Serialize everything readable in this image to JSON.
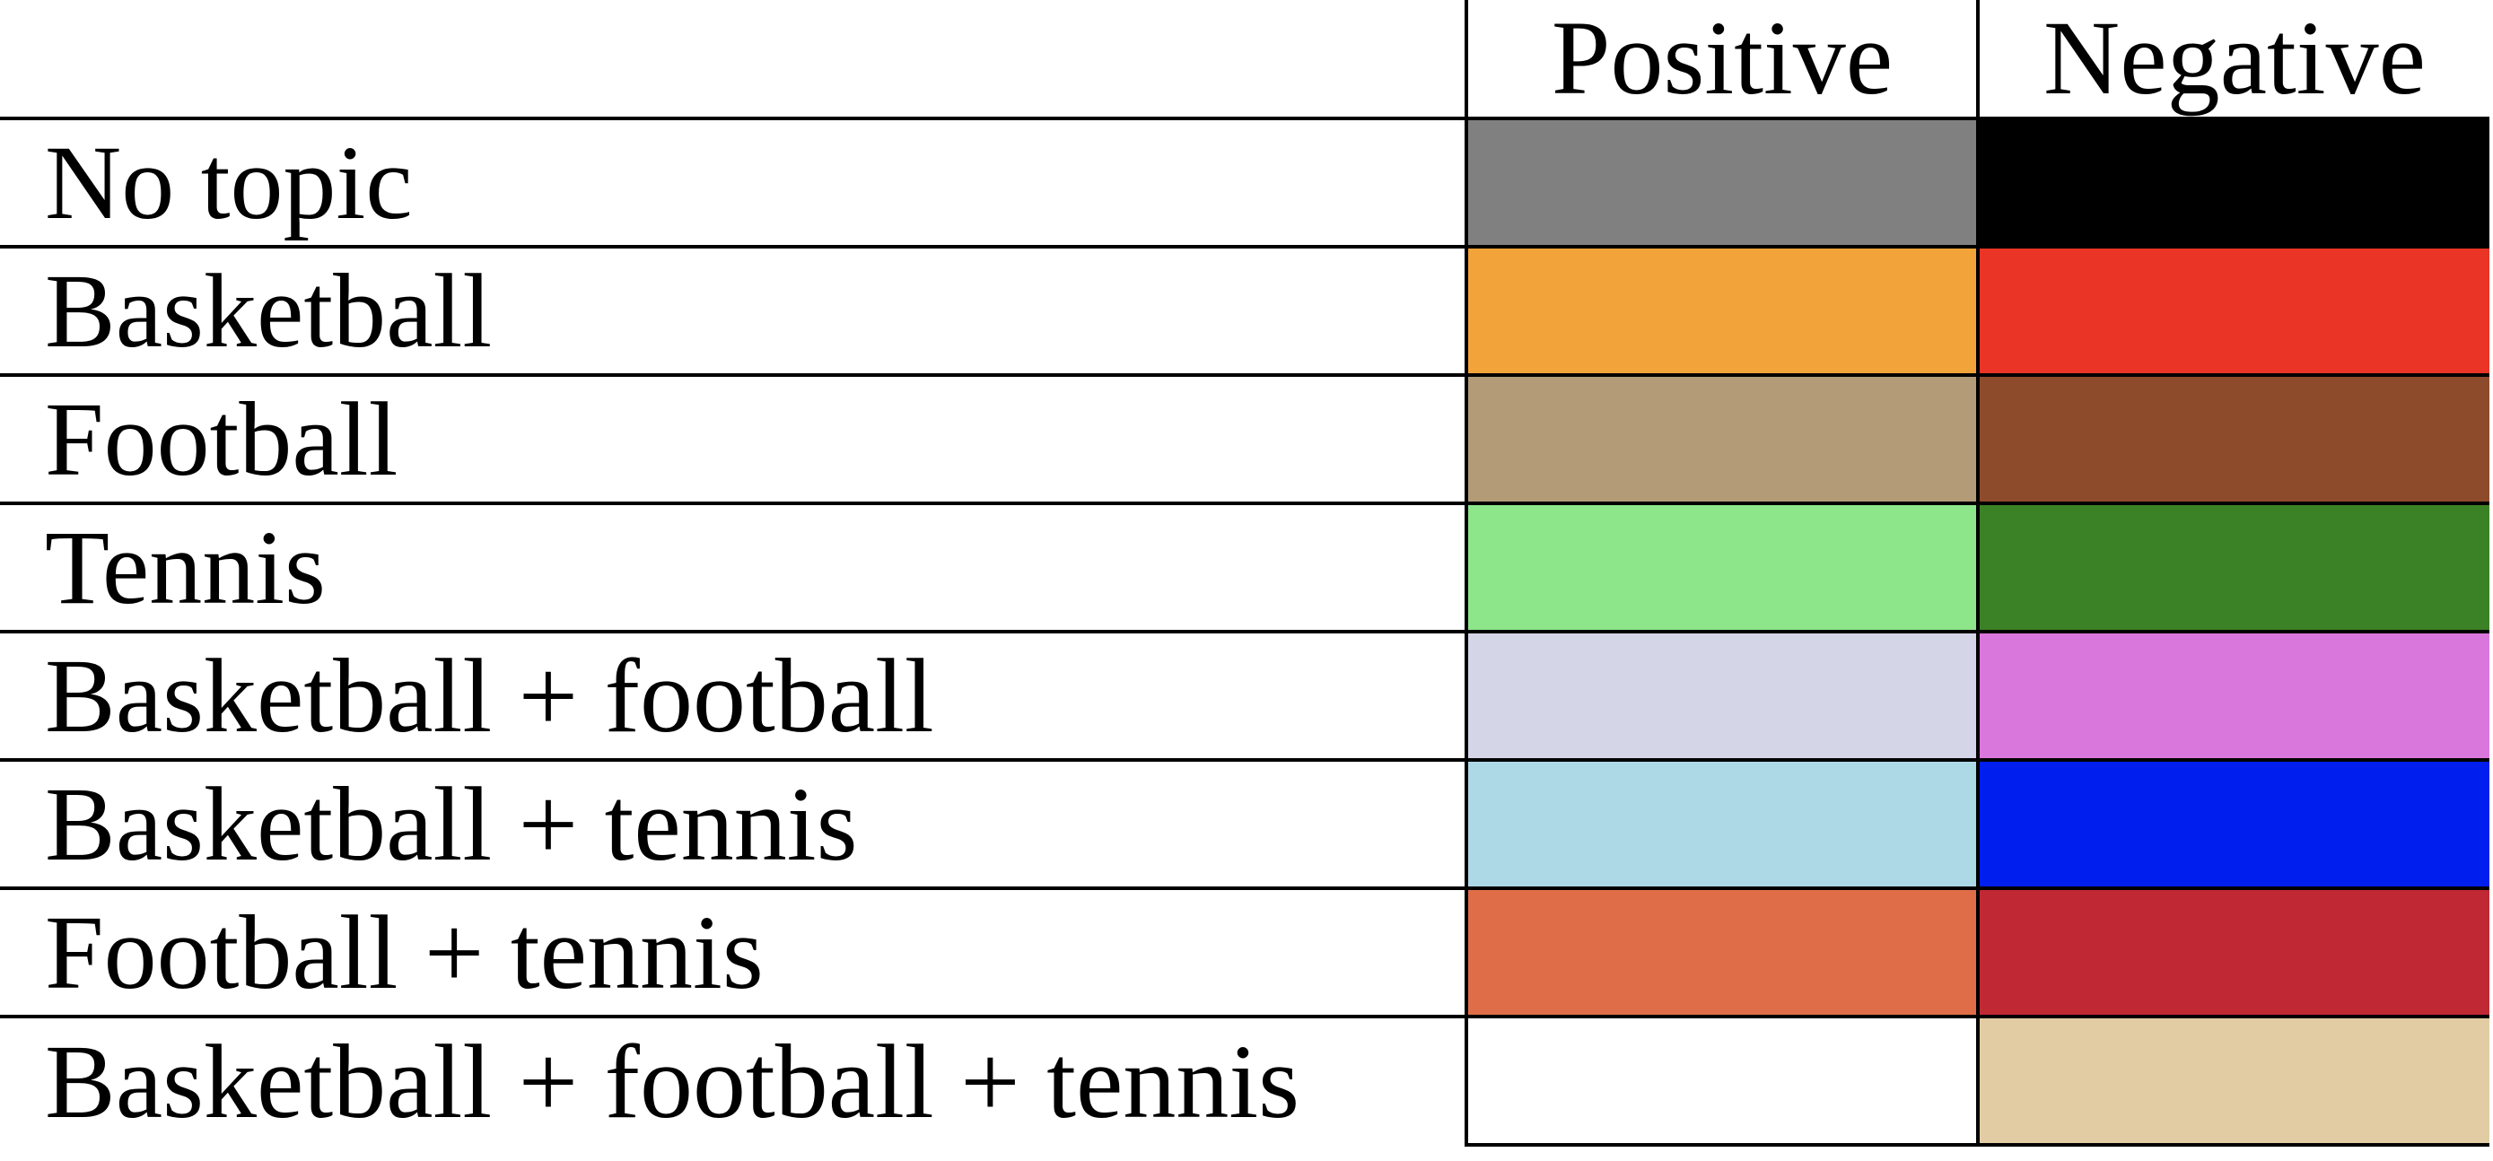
{
  "header": {
    "positive": "Positive",
    "negative": "Negative"
  },
  "rows": [
    {
      "label": "No topic",
      "positive_color": "#808080",
      "negative_color": "#000000"
    },
    {
      "label": "Basketball",
      "positive_color": "#F2A43A",
      "negative_color": "#EA3425"
    },
    {
      "label": "Football",
      "positive_color": "#B39B78",
      "negative_color": "#8E4B2B"
    },
    {
      "label": "Tennis",
      "positive_color": "#8DE68A",
      "negative_color": "#3B8126"
    },
    {
      "label": "Basketball + football",
      "positive_color": "#D5D5E8",
      "negative_color": "#DA77DC"
    },
    {
      "label": "Basketball + tennis",
      "positive_color": "#ADD8E6",
      "negative_color": "#001EEE"
    },
    {
      "label": "Football + tennis",
      "positive_color": "#DF6E48",
      "negative_color": "#C02834"
    },
    {
      "label": "Basketball + football + tennis",
      "positive_color": "#FFFFFF",
      "negative_color": "#E2CCA3"
    }
  ]
}
